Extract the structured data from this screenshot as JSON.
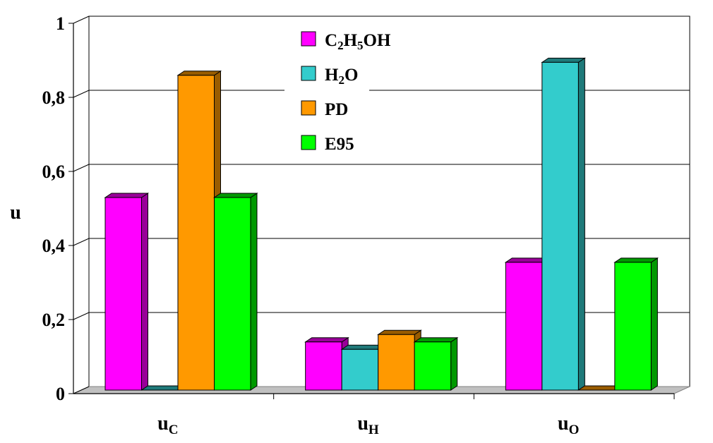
{
  "chart_data": {
    "type": "bar",
    "style": "3d-clustered-column",
    "ylabel": "u",
    "ylim": [
      0,
      1
    ],
    "yticks": [
      "0",
      "0,2",
      "0,4",
      "0,6",
      "0,8",
      "1"
    ],
    "grid": true,
    "legend_position": "top-center",
    "categories": [
      {
        "main": "u",
        "sub": "C"
      },
      {
        "main": "u",
        "sub": "H"
      },
      {
        "main": "u",
        "sub": "O"
      }
    ],
    "series": [
      {
        "name": "C2H5OH",
        "label_parts": [
          [
            "C",
            ""
          ],
          [
            "2",
            "sub"
          ],
          [
            "H",
            ""
          ],
          [
            "5",
            "sub"
          ],
          [
            "OH",
            ""
          ]
        ],
        "color": "#ff00ff",
        "side_color": "#990099",
        "values": [
          0.52,
          0.13,
          0.345
        ]
      },
      {
        "name": "H2O",
        "label_parts": [
          [
            "H",
            ""
          ],
          [
            "2",
            "sub"
          ],
          [
            "O",
            ""
          ]
        ],
        "color": "#33cccc",
        "side_color": "#1f7a7a",
        "values": [
          0.0,
          0.11,
          0.885
        ]
      },
      {
        "name": "PD",
        "label_parts": [
          [
            "PD",
            ""
          ]
        ],
        "color": "#ff9900",
        "side_color": "#995c00",
        "values": [
          0.85,
          0.15,
          0.0
        ]
      },
      {
        "name": "E95",
        "label_parts": [
          [
            "E95",
            ""
          ]
        ],
        "color": "#00ff00",
        "side_color": "#009900",
        "values": [
          0.52,
          0.13,
          0.345
        ]
      }
    ]
  }
}
